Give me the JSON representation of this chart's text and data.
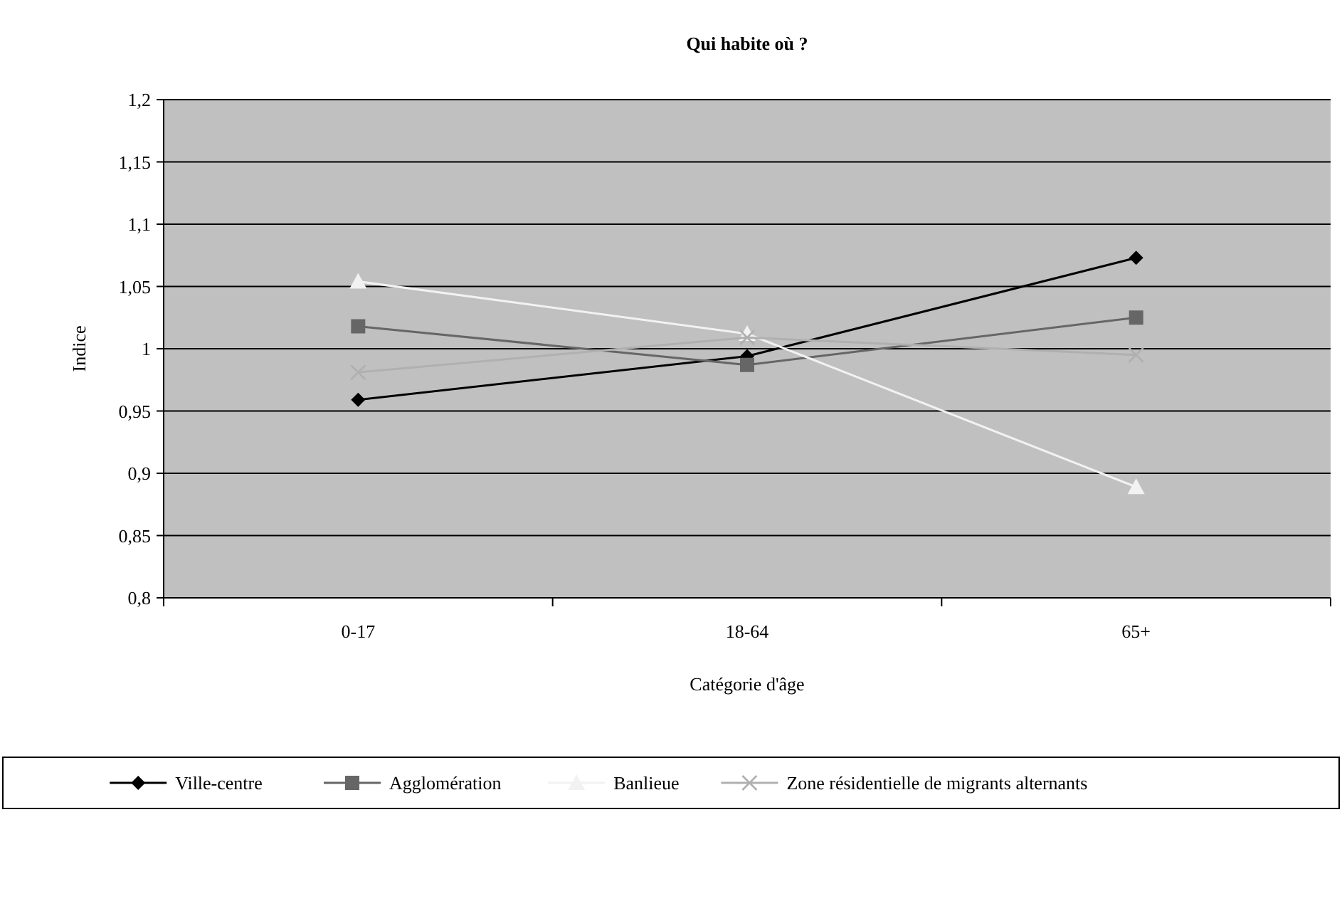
{
  "chart_data": {
    "type": "line",
    "title": "Qui habite où ?",
    "xlabel": "Catégorie d'âge",
    "ylabel": "Indice",
    "categories": [
      "0-17",
      "18-64",
      "65+"
    ],
    "series": [
      {
        "name": "Ville-centre",
        "color": "#000000",
        "marker": "diamond",
        "values": [
          0.959,
          0.994,
          1.073
        ]
      },
      {
        "name": "Agglomération",
        "color": "#666666",
        "marker": "square",
        "values": [
          1.018,
          0.987,
          1.025
        ]
      },
      {
        "name": "Banlieue",
        "color": "#f2f2f2",
        "marker": "triangle",
        "values": [
          1.054,
          1.012,
          0.889
        ]
      },
      {
        "name": "Zone résidentielle de migrants alternants",
        "color": "#b0b0b0",
        "marker": "cross",
        "values": [
          0.981,
          1.009,
          0.995
        ]
      }
    ],
    "ylim": [
      0.8,
      1.2
    ],
    "yticks": [
      {
        "value": 0.8,
        "label": "0,8"
      },
      {
        "value": 0.85,
        "label": "0,85"
      },
      {
        "value": 0.9,
        "label": "0,9"
      },
      {
        "value": 0.95,
        "label": "0,95"
      },
      {
        "value": 1,
        "label": "1"
      },
      {
        "value": 1.05,
        "label": "1,05"
      },
      {
        "value": 1.1,
        "label": "1,1"
      },
      {
        "value": 1.15,
        "label": "1,15"
      },
      {
        "value": 1.2,
        "label": "1,2"
      }
    ],
    "grid": "y",
    "legend": "bottom"
  }
}
